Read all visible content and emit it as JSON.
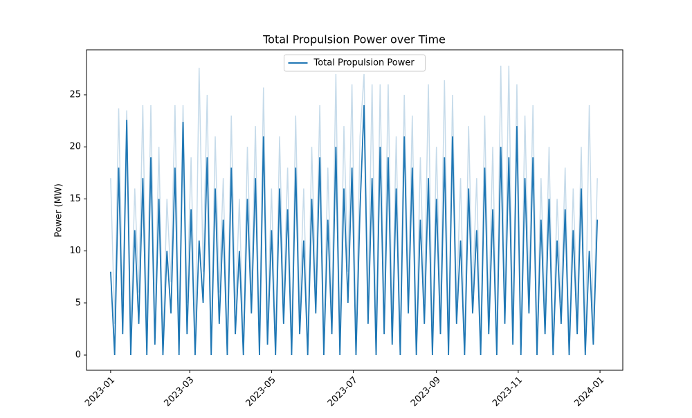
{
  "chart_data": {
    "type": "line",
    "title": "Total Propulsion Power over Time",
    "y_label": "Power (MW)",
    "x": [
      "2023-01-01",
      "2023-01-04",
      "2023-01-07",
      "2023-01-10",
      "2023-01-13",
      "2023-01-16",
      "2023-01-19",
      "2023-01-22",
      "2023-01-25",
      "2023-01-28",
      "2023-01-31",
      "2023-02-03",
      "2023-02-06",
      "2023-02-09",
      "2023-02-12",
      "2023-02-15",
      "2023-02-18",
      "2023-02-21",
      "2023-02-24",
      "2023-02-27",
      "2023-03-02",
      "2023-03-05",
      "2023-03-08",
      "2023-03-11",
      "2023-03-14",
      "2023-03-17",
      "2023-03-20",
      "2023-03-23",
      "2023-03-26",
      "2023-03-29",
      "2023-04-01",
      "2023-04-04",
      "2023-04-07",
      "2023-04-10",
      "2023-04-13",
      "2023-04-16",
      "2023-04-19",
      "2023-04-22",
      "2023-04-25",
      "2023-04-28",
      "2023-05-01",
      "2023-05-04",
      "2023-05-07",
      "2023-05-10",
      "2023-05-13",
      "2023-05-16",
      "2023-05-19",
      "2023-05-22",
      "2023-05-25",
      "2023-05-28",
      "2023-05-31",
      "2023-06-03",
      "2023-06-06",
      "2023-06-09",
      "2023-06-12",
      "2023-06-15",
      "2023-06-18",
      "2023-06-21",
      "2023-06-24",
      "2023-06-27",
      "2023-06-30",
      "2023-07-03",
      "2023-07-06",
      "2023-07-09",
      "2023-07-12",
      "2023-07-15",
      "2023-07-18",
      "2023-07-21",
      "2023-07-24",
      "2023-07-27",
      "2023-07-30",
      "2023-08-02",
      "2023-08-05",
      "2023-08-08",
      "2023-08-11",
      "2023-08-14",
      "2023-08-17",
      "2023-08-20",
      "2023-08-23",
      "2023-08-26",
      "2023-08-29",
      "2023-09-01",
      "2023-09-04",
      "2023-09-07",
      "2023-09-10",
      "2023-09-13",
      "2023-09-16",
      "2023-09-19",
      "2023-09-22",
      "2023-09-25",
      "2023-09-28",
      "2023-10-01",
      "2023-10-04",
      "2023-10-07",
      "2023-10-10",
      "2023-10-13",
      "2023-10-16",
      "2023-10-19",
      "2023-10-22",
      "2023-10-25",
      "2023-10-28",
      "2023-10-31",
      "2023-11-03",
      "2023-11-06",
      "2023-11-09",
      "2023-11-12",
      "2023-11-15",
      "2023-11-18",
      "2023-11-21",
      "2023-11-24",
      "2023-11-27",
      "2023-11-30",
      "2023-12-03",
      "2023-12-06",
      "2023-12-09",
      "2023-12-12",
      "2023-12-15",
      "2023-12-18",
      "2023-12-21",
      "2023-12-24",
      "2023-12-27",
      "2023-12-30"
    ],
    "series": [
      {
        "name": "Total Propulsion Power",
        "color": "#1f77b4",
        "values": [
          8,
          0,
          18,
          2,
          22.6,
          0,
          12,
          3,
          17,
          0,
          19,
          1,
          15,
          0,
          10,
          4,
          18,
          0,
          22.4,
          2,
          14,
          0,
          11,
          5,
          19,
          0,
          16,
          3,
          13,
          0,
          18,
          2,
          10,
          0,
          15,
          4,
          17,
          0,
          21,
          1,
          12,
          0,
          16,
          3,
          14,
          0,
          18,
          2,
          11,
          0,
          15,
          4,
          19,
          0,
          13,
          2,
          20,
          0,
          16,
          5,
          18,
          0,
          14,
          24,
          3,
          17,
          0,
          20,
          2,
          19,
          1,
          16,
          0,
          21,
          4,
          18,
          0,
          13,
          3,
          17,
          0,
          15,
          2,
          19,
          0,
          21,
          3,
          11,
          0,
          16,
          4,
          12,
          0,
          18,
          2,
          14,
          0,
          20,
          3,
          19,
          1,
          22,
          0,
          17,
          4,
          19,
          0,
          13,
          2,
          15,
          0,
          11,
          3,
          14,
          0,
          12,
          2,
          16,
          0,
          10,
          1,
          13
        ]
      }
    ],
    "band": {
      "color": "#c6dbea",
      "values": [
        17,
        3,
        23.7,
        5,
        23.5,
        2,
        16,
        6,
        24,
        2,
        24,
        3,
        20,
        1,
        15,
        7,
        24,
        2,
        24,
        5,
        19,
        1,
        27.6,
        8,
        25,
        1,
        21,
        6,
        17,
        1,
        23,
        4,
        15,
        1,
        20,
        6,
        22,
        1,
        25.7,
        3,
        16,
        1,
        21,
        5,
        18,
        1,
        23,
        4,
        16,
        1,
        20,
        6,
        24,
        1,
        18,
        4,
        27,
        1,
        22,
        8,
        26,
        1,
        21,
        27,
        5,
        26,
        1,
        26,
        4,
        26,
        3,
        21,
        1,
        25,
        6,
        23,
        1,
        19,
        5,
        26,
        1,
        20,
        4,
        26.4,
        1,
        25,
        5,
        17,
        1,
        22,
        6,
        17,
        1,
        23,
        4,
        20,
        1,
        27.8,
        5,
        27.8,
        2,
        26,
        1,
        23,
        6,
        24,
        1,
        17,
        4,
        20,
        1,
        15,
        5,
        18,
        1,
        16,
        4,
        20,
        1,
        24,
        2,
        17
      ]
    },
    "xlim": [
      "2022-12-14",
      "2024-01-18"
    ],
    "xticks": [
      {
        "value": "2023-01-01",
        "label": "2023-01"
      },
      {
        "value": "2023-03-01",
        "label": "2023-03"
      },
      {
        "value": "2023-05-01",
        "label": "2023-05"
      },
      {
        "value": "2023-07-01",
        "label": "2023-07"
      },
      {
        "value": "2023-09-01",
        "label": "2023-09"
      },
      {
        "value": "2023-11-01",
        "label": "2023-11"
      },
      {
        "value": "2024-01-01",
        "label": "2024-01"
      }
    ],
    "ylim": [
      -1.46,
      29.32
    ],
    "yticks": [
      0,
      5,
      10,
      15,
      20,
      25
    ],
    "legend": "upper center"
  }
}
